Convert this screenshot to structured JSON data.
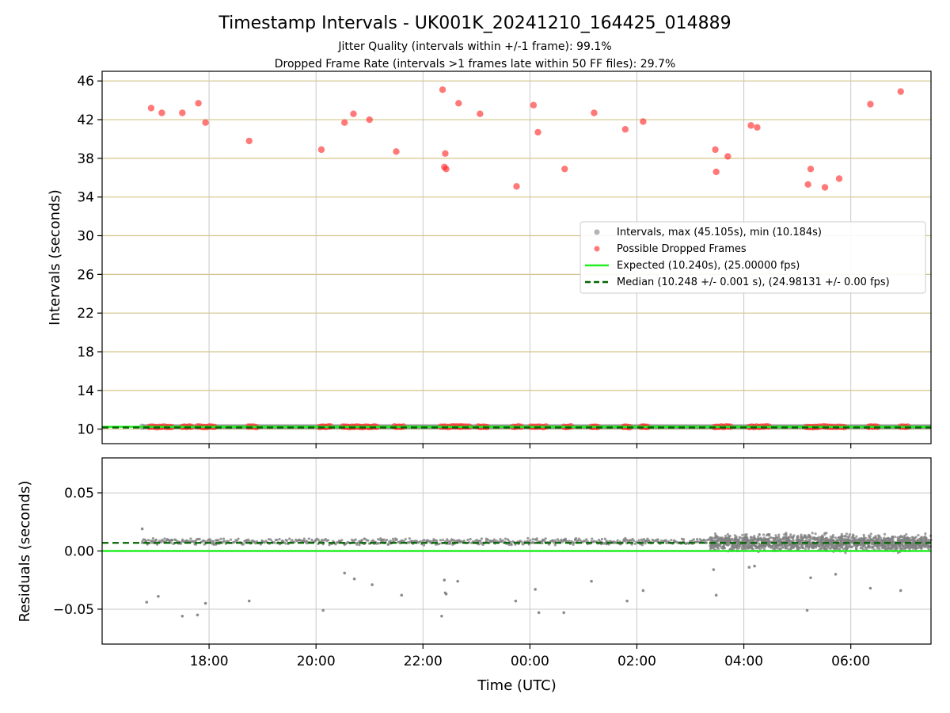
{
  "title": "Timestamp Intervals - UK001K_20241210_164425_014889",
  "subtitle_jitter": "Jitter Quality (intervals within +/-1 frame): 99.1%",
  "subtitle_dropped": "Dropped Frame Rate (intervals >1 frames late within 50 FF files): 29.7%",
  "colors": {
    "intervals": "#808080",
    "dropped": "#ff2020",
    "expected": "#22ee22",
    "median": "#006400",
    "ygrid_top": "#d4c48a",
    "grid": "#c8c8c8"
  },
  "chart_data": [
    {
      "type": "scatter",
      "ylabel": "Intervals (seconds)",
      "xlim": [
        "16:00",
        "07:30"
      ],
      "ylim": [
        8.5,
        47
      ],
      "y_ticks": [
        "10",
        "14",
        "18",
        "22",
        "26",
        "30",
        "34",
        "38",
        "42",
        "46"
      ],
      "legend_position": "center-right",
      "grid": "horizontal lines at y ticks, vertical lines at x ticks",
      "legend": [
        "Intervals, max (45.105s), min (10.184s)",
        "Possible Dropped Frames",
        "Expected (10.240s), (25.00000 fps)",
        "Median (10.248 +/- 0.001 s), (24.98131 +/- 0.00 fps)"
      ],
      "expected_interval": 10.24,
      "median_interval": 10.248,
      "intervals_range": [
        "16:45",
        "07:30"
      ],
      "dropped_points": [
        {
          "t": "16:55",
          "y": 43.2
        },
        {
          "t": "17:07",
          "y": 42.7
        },
        {
          "t": "17:30",
          "y": 42.7
        },
        {
          "t": "17:48",
          "y": 43.7
        },
        {
          "t": "17:56",
          "y": 41.7
        },
        {
          "t": "18:45",
          "y": 39.8
        },
        {
          "t": "20:06",
          "y": 38.9
        },
        {
          "t": "20:32",
          "y": 41.7
        },
        {
          "t": "20:42",
          "y": 42.6
        },
        {
          "t": "21:00",
          "y": 42.0
        },
        {
          "t": "21:30",
          "y": 38.7
        },
        {
          "t": "22:22",
          "y": 45.1
        },
        {
          "t": "22:24",
          "y": 37.1
        },
        {
          "t": "22:25",
          "y": 38.5
        },
        {
          "t": "22:26",
          "y": 36.9
        },
        {
          "t": "22:40",
          "y": 43.7
        },
        {
          "t": "23:04",
          "y": 42.6
        },
        {
          "t": "23:45",
          "y": 35.1
        },
        {
          "t": "00:04",
          "y": 43.5
        },
        {
          "t": "00:09",
          "y": 40.7
        },
        {
          "t": "00:39",
          "y": 36.9
        },
        {
          "t": "01:12",
          "y": 42.7
        },
        {
          "t": "01:47",
          "y": 41.0
        },
        {
          "t": "02:07",
          "y": 41.8
        },
        {
          "t": "03:28",
          "y": 38.9
        },
        {
          "t": "03:29",
          "y": 36.6
        },
        {
          "t": "03:42",
          "y": 38.2
        },
        {
          "t": "04:08",
          "y": 41.4
        },
        {
          "t": "04:15",
          "y": 41.2
        },
        {
          "t": "05:12",
          "y": 35.3
        },
        {
          "t": "05:15",
          "y": 36.9
        },
        {
          "t": "05:31",
          "y": 35.0
        },
        {
          "t": "05:47",
          "y": 35.9
        },
        {
          "t": "06:22",
          "y": 43.6
        },
        {
          "t": "06:56",
          "y": 44.9
        }
      ],
      "dropped_baseline_ranges": [
        [
          "16:53",
          "17:18"
        ],
        [
          "17:30",
          "17:40"
        ],
        [
          "17:47",
          "18:06"
        ],
        [
          "18:44",
          "18:53"
        ],
        [
          "20:04",
          "20:16"
        ],
        [
          "20:30",
          "20:58"
        ],
        [
          "21:00",
          "21:08"
        ],
        [
          "21:28",
          "21:38"
        ],
        [
          "22:20",
          "22:42"
        ],
        [
          "22:43",
          "22:52"
        ],
        [
          "23:02",
          "23:12"
        ],
        [
          "23:41",
          "23:50"
        ],
        [
          "00:01",
          "00:18"
        ],
        [
          "00:38",
          "00:46"
        ],
        [
          "01:09",
          "01:16"
        ],
        [
          "01:45",
          "01:52"
        ],
        [
          "02:05",
          "02:12"
        ],
        [
          "03:27",
          "03:45"
        ],
        [
          "04:06",
          "04:28"
        ],
        [
          "05:10",
          "05:25"
        ],
        [
          "05:29",
          "05:40"
        ],
        [
          "05:44",
          "05:53"
        ],
        [
          "06:20",
          "06:30"
        ],
        [
          "06:56",
          "07:04"
        ]
      ]
    },
    {
      "type": "scatter",
      "xlabel": "Time (UTC)",
      "ylabel": "Residuals (seconds)",
      "xlim": [
        "16:00",
        "07:30"
      ],
      "ylim": [
        -0.08,
        0.08
      ],
      "y_ticks": [
        "−0.05",
        "0.00",
        "0.05"
      ],
      "x_ticks": [
        "18:00",
        "20:00",
        "22:00",
        "00:00",
        "02:00",
        "04:00",
        "06:00"
      ],
      "expected_residual": 0.0,
      "median_residual": 0.007,
      "sparse_band": {
        "range": [
          "16:45",
          "03:22"
        ],
        "center": 0.008,
        "spread": 0.002
      },
      "dense_band": {
        "range": [
          "03:22",
          "07:30"
        ],
        "center": 0.007,
        "spread": 0.005
      },
      "outliers": [
        {
          "t": "16:45",
          "y": 0.019
        },
        {
          "t": "16:50",
          "y": -0.044
        },
        {
          "t": "17:03",
          "y": -0.039
        },
        {
          "t": "17:30",
          "y": -0.056
        },
        {
          "t": "17:47",
          "y": -0.055
        },
        {
          "t": "17:56",
          "y": -0.045
        },
        {
          "t": "18:45",
          "y": -0.043
        },
        {
          "t": "20:08",
          "y": -0.051
        },
        {
          "t": "20:32",
          "y": -0.019
        },
        {
          "t": "20:43",
          "y": -0.024
        },
        {
          "t": "21:03",
          "y": -0.029
        },
        {
          "t": "21:36",
          "y": -0.038
        },
        {
          "t": "22:21",
          "y": -0.056
        },
        {
          "t": "22:24",
          "y": -0.025
        },
        {
          "t": "22:25",
          "y": -0.036
        },
        {
          "t": "22:26",
          "y": -0.037
        },
        {
          "t": "22:39",
          "y": -0.026
        },
        {
          "t": "23:44",
          "y": -0.043
        },
        {
          "t": "00:06",
          "y": -0.033
        },
        {
          "t": "00:10",
          "y": -0.053
        },
        {
          "t": "00:38",
          "y": -0.053
        },
        {
          "t": "01:09",
          "y": -0.026
        },
        {
          "t": "01:49",
          "y": -0.043
        },
        {
          "t": "02:07",
          "y": -0.034
        },
        {
          "t": "03:26",
          "y": -0.016
        },
        {
          "t": "03:29",
          "y": -0.038
        },
        {
          "t": "04:06",
          "y": -0.014
        },
        {
          "t": "04:12",
          "y": -0.013
        },
        {
          "t": "05:11",
          "y": -0.051
        },
        {
          "t": "05:15",
          "y": -0.023
        },
        {
          "t": "05:43",
          "y": -0.02
        },
        {
          "t": "06:22",
          "y": -0.032
        },
        {
          "t": "06:56",
          "y": -0.034
        }
      ]
    }
  ]
}
